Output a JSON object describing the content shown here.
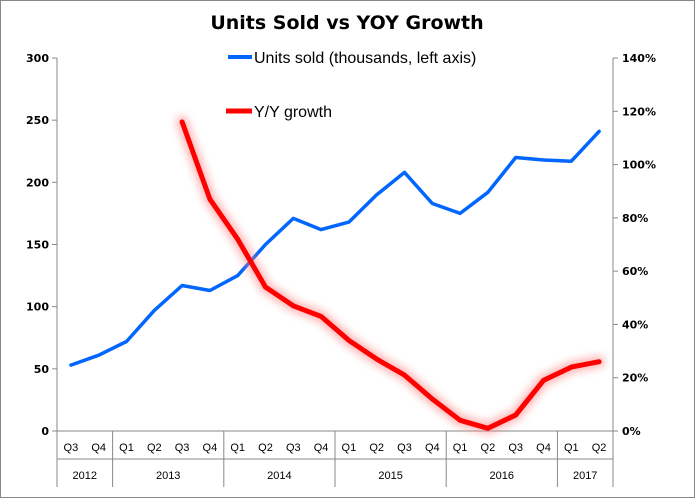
{
  "chart_data": {
    "type": "line",
    "title": "Units Sold vs YOY Growth",
    "quarters": [
      "Q3",
      "Q4",
      "Q1",
      "Q2",
      "Q3",
      "Q4",
      "Q1",
      "Q2",
      "Q3",
      "Q4",
      "Q1",
      "Q2",
      "Q3",
      "Q4",
      "Q1",
      "Q2",
      "Q3",
      "Q4",
      "Q1",
      "Q2"
    ],
    "years": [
      {
        "label": "2012",
        "span": 2
      },
      {
        "label": "2013",
        "span": 4
      },
      {
        "label": "2014",
        "span": 4
      },
      {
        "label": "2015",
        "span": 4
      },
      {
        "label": "2016",
        "span": 4
      },
      {
        "label": "2017",
        "span": 2
      }
    ],
    "left_axis": {
      "min": 0,
      "max": 300,
      "step": 50,
      "ticks": [
        "0",
        "50",
        "100",
        "150",
        "200",
        "250",
        "300"
      ]
    },
    "right_axis": {
      "min": 0,
      "max": 140,
      "step": 20,
      "ticks": [
        "0%",
        "20%",
        "40%",
        "60%",
        "80%",
        "100%",
        "120%",
        "140%"
      ]
    },
    "grid": false,
    "series": [
      {
        "name": "Units sold (thousands, left axis)",
        "axis": "left",
        "color": "#0066ff",
        "values": [
          53,
          61,
          72,
          97,
          117,
          113,
          125,
          150,
          171,
          162,
          168,
          190,
          208,
          183,
          175,
          192,
          220,
          218,
          217,
          241
        ]
      },
      {
        "name": "Y/Y growth",
        "axis": "right",
        "color": "#ff0000",
        "glow": true,
        "values": [
          null,
          null,
          null,
          null,
          116,
          87,
          72,
          54,
          47,
          43,
          34,
          27,
          21,
          12,
          4,
          1,
          6,
          19,
          24,
          26
        ]
      }
    ]
  }
}
